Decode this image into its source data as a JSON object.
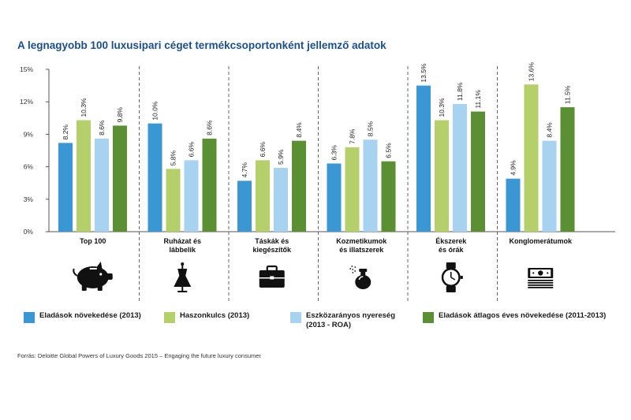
{
  "title": "A legnagyobb 100 luxusipari céget termékcsoportonként jellemző adatok",
  "source": "Forrás: Deloitte Global Powers of Luxury Goods 2015 – Engaging the future luxury consumer",
  "colors": {
    "sales_growth": "#3a97d4",
    "profit_margin": "#b5cf6b",
    "roa": "#a7d3f0",
    "cagr": "#5b8f34",
    "axis": "#555555",
    "icon": "#111111"
  },
  "chart_data": {
    "type": "bar",
    "ylim": [
      0,
      15
    ],
    "yticks": [
      "0%",
      "3%",
      "6%",
      "9%",
      "12%",
      "15%"
    ],
    "ytick_values": [
      0,
      3,
      6,
      9,
      12,
      15
    ],
    "value_labels": [
      [
        "8.2%",
        "10.3%",
        "8.6%",
        "9.8%"
      ],
      [
        "10.0%",
        "5.8%",
        "6.6%",
        "8.6%"
      ],
      [
        "4.7%",
        "6.6%",
        "5.9%",
        "8.4%"
      ],
      [
        "6.3%",
        "7.8%",
        "8.5%",
        "6.5%"
      ],
      [
        "13.5%",
        "10.3%",
        "11.8%",
        "11.1%"
      ],
      [
        "4.9%",
        "13.6%",
        "8.4%",
        "11.5%"
      ]
    ],
    "categories": [
      [
        "Top 100"
      ],
      [
        "Ruházat és",
        "lábbelik"
      ],
      [
        "Táskák és",
        "kiegészítők"
      ],
      [
        "Kozmetikumok",
        "és illatszerek"
      ],
      [
        "Ékszerek",
        "és órák"
      ],
      [
        "Konglomerátumok"
      ]
    ],
    "category_icons": [
      "piggy-bank-icon",
      "dress-mannequin-icon",
      "briefcase-icon",
      "perfume-bottle-icon",
      "wristwatch-icon",
      "money-stack-icon"
    ],
    "series": [
      {
        "name": "Eladások növekedése (2013)",
        "color_key": "sales_growth",
        "values": [
          8.2,
          10.0,
          4.7,
          6.3,
          13.5,
          4.9
        ]
      },
      {
        "name": "Haszonkulcs (2013)",
        "color_key": "profit_margin",
        "values": [
          10.3,
          5.8,
          6.6,
          7.8,
          10.3,
          13.6
        ]
      },
      {
        "name": "Eszközarányos nyereség (2013 - ROA)",
        "color_key": "roa",
        "values": [
          8.6,
          6.6,
          5.9,
          8.5,
          11.8,
          8.4
        ]
      },
      {
        "name": "Eladások átlagos éves növekedése (2011-2013)",
        "color_key": "cagr",
        "values": [
          9.8,
          8.6,
          8.4,
          6.5,
          11.1,
          11.5
        ]
      }
    ],
    "legend": [
      [
        "Eladások növekedése (2013)"
      ],
      [
        "Haszonkulcs (2013)"
      ],
      [
        "Eszközarányos nyereség",
        "(2013 - ROA)"
      ],
      [
        "Eladások átlagos éves növekedése (2011-2013)"
      ]
    ],
    "grid": false,
    "legend_position": "bottom"
  }
}
